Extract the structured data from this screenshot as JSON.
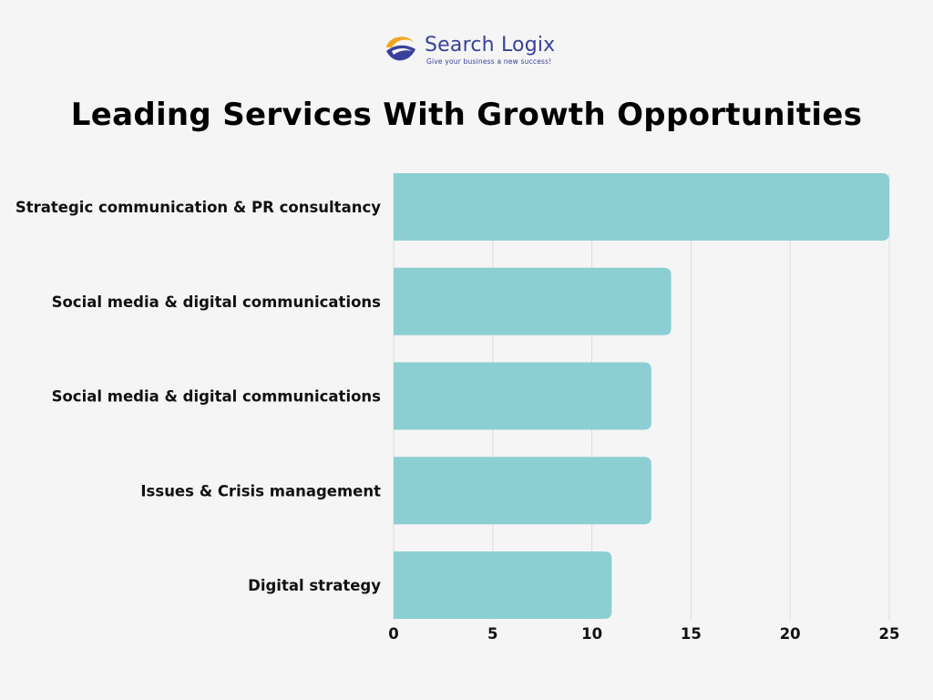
{
  "logo": {
    "name": "Search Logix",
    "tagline": "Give your business a new success!"
  },
  "chart_data": {
    "type": "bar",
    "orientation": "horizontal",
    "title": "Leading Services With Growth Opportunities",
    "categories": [
      "Strategic communication & PR consultancy",
      "Social media & digital communications",
      "Social media & digital communications",
      "Issues & Crisis management",
      "Digital strategy"
    ],
    "values": [
      25,
      14,
      13,
      13,
      11
    ],
    "xlim": [
      0,
      25
    ],
    "xticks": [
      0,
      5,
      10,
      15,
      20,
      25
    ],
    "xlabel": "",
    "ylabel": "",
    "grid": "vertical",
    "legend": "none",
    "bar_color": "#8ccfd3",
    "grid_color": "#dcdcdc"
  }
}
